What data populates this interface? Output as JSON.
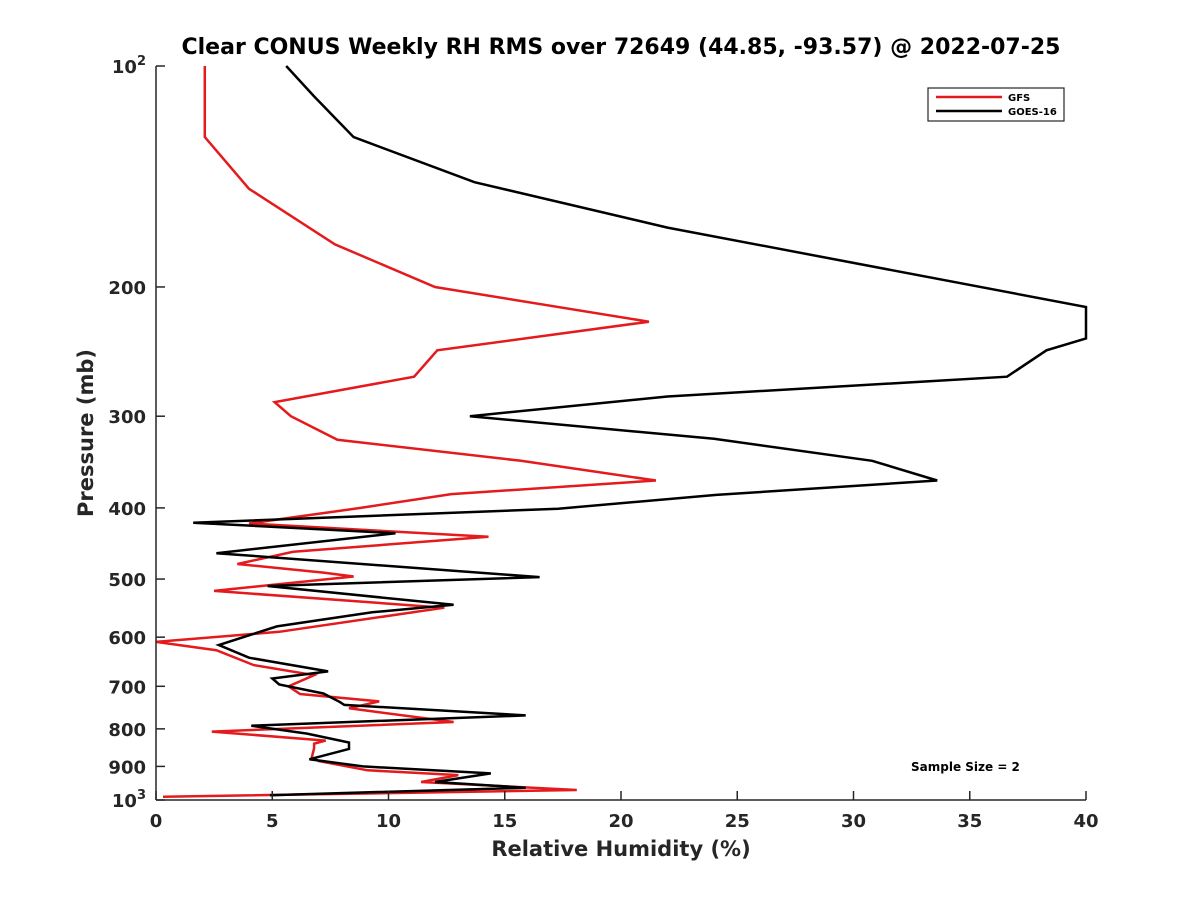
{
  "chart_data": {
    "type": "line",
    "title": "Clear CONUS Weekly RH RMS over 72649 (44.85, -93.57) @ 2022-07-25",
    "xlabel": "Relative Humidity (%)",
    "ylabel": "Pressure (mb)",
    "xlim": [
      0,
      40
    ],
    "ylim": [
      100,
      1000
    ],
    "y_scale": "log",
    "y_reversed": true,
    "x_ticks": [
      "0",
      "5",
      "10",
      "15",
      "20",
      "25",
      "30",
      "35",
      "40"
    ],
    "y_ticks": [
      {
        "value": 100,
        "base": "10",
        "exp": "2"
      },
      {
        "value": 200,
        "label": "200"
      },
      {
        "value": 300,
        "label": "300"
      },
      {
        "value": 400,
        "label": "400"
      },
      {
        "value": 500,
        "label": "500"
      },
      {
        "value": 600,
        "label": "600"
      },
      {
        "value": 700,
        "label": "700"
      },
      {
        "value": 800,
        "label": "800"
      },
      {
        "value": 900,
        "label": "900"
      },
      {
        "value": 1000,
        "base": "10",
        "exp": "3"
      }
    ],
    "legend_position": "top-right",
    "annotation": "Sample Size = 2",
    "series": [
      {
        "name": "GFS",
        "color": "#e41a1c",
        "points": [
          [
            2.1,
            100
          ],
          [
            2.1,
            125
          ],
          [
            4.0,
            147
          ],
          [
            7.7,
            175
          ],
          [
            12.0,
            200
          ],
          [
            21.2,
            223
          ],
          [
            12.1,
            244
          ],
          [
            11.1,
            265
          ],
          [
            5.1,
            287
          ],
          [
            5.8,
            300
          ],
          [
            7.8,
            323
          ],
          [
            15.7,
            345
          ],
          [
            21.5,
            367
          ],
          [
            12.7,
            383
          ],
          [
            8.8,
            400
          ],
          [
            4.0,
            420
          ],
          [
            14.3,
            438
          ],
          [
            5.9,
            459
          ],
          [
            3.5,
            477
          ],
          [
            7.2,
            490
          ],
          [
            8.5,
            496
          ],
          [
            2.5,
            519
          ],
          [
            12.4,
            547
          ],
          [
            5.3,
            590
          ],
          [
            0,
            609
          ],
          [
            2.6,
            625
          ],
          [
            4.2,
            655
          ],
          [
            6.8,
            676
          ],
          [
            5.7,
            700
          ],
          [
            6.2,
            717
          ],
          [
            9.6,
            734
          ],
          [
            8.3,
            750
          ],
          [
            12.8,
            783
          ],
          [
            2.4,
            807
          ],
          [
            7.3,
            830
          ],
          [
            6.8,
            838
          ],
          [
            6.8,
            850
          ],
          [
            6.7,
            875
          ],
          [
            7.0,
            885
          ],
          [
            9.1,
            911
          ],
          [
            13.0,
            925
          ],
          [
            11.4,
            945
          ],
          [
            18.1,
            969
          ],
          [
            0.3,
            990
          ]
        ]
      },
      {
        "name": "GOES-16",
        "color": "#000000",
        "points": [
          [
            5.6,
            100
          ],
          [
            6.8,
            110
          ],
          [
            8.5,
            125
          ],
          [
            13.7,
            144
          ],
          [
            22.0,
            166
          ],
          [
            40.0,
            213
          ],
          [
            40.0,
            235
          ],
          [
            38.3,
            244
          ],
          [
            36.6,
            265
          ],
          [
            22.0,
            282
          ],
          [
            13.5,
            300
          ],
          [
            24.0,
            322
          ],
          [
            30.8,
            345
          ],
          [
            33.6,
            367
          ],
          [
            24.1,
            384
          ],
          [
            17.3,
            401
          ],
          [
            1.6,
            419
          ],
          [
            10.3,
            433
          ],
          [
            2.6,
            461
          ],
          [
            16.5,
            497
          ],
          [
            4.8,
            511
          ],
          [
            12.8,
            542
          ],
          [
            9.3,
            555
          ],
          [
            5.2,
            580
          ],
          [
            2.7,
            615
          ],
          [
            4.0,
            640
          ],
          [
            7.4,
            668
          ],
          [
            5.0,
            683
          ],
          [
            5.3,
            696
          ],
          [
            7.2,
            716
          ],
          [
            7.9,
            735
          ],
          [
            8.1,
            742
          ],
          [
            15.9,
            767
          ],
          [
            4.1,
            792
          ],
          [
            6.5,
            812
          ],
          [
            8.3,
            835
          ],
          [
            8.3,
            852
          ],
          [
            6.6,
            880
          ],
          [
            8.9,
            900
          ],
          [
            14.4,
            920
          ],
          [
            12.0,
            945
          ],
          [
            15.9,
            962
          ],
          [
            4.9,
            985
          ]
        ]
      }
    ]
  }
}
